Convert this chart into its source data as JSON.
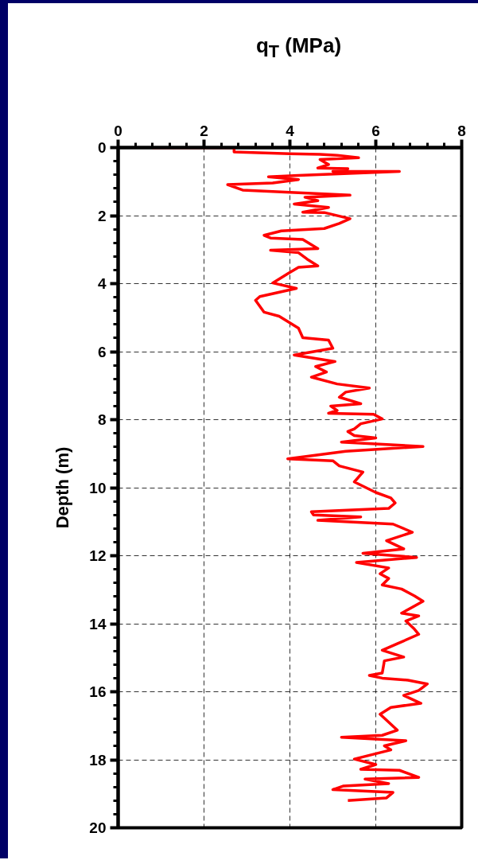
{
  "chart_data": {
    "type": "line",
    "xlabel": "q$_{T}$ (MPa)",
    "ylabel": "Depth (m)",
    "xlim": [
      0,
      8
    ],
    "ylim": [
      20,
      0
    ],
    "xticks": [
      0,
      2,
      4,
      6,
      8
    ],
    "yticks": [
      0,
      2,
      4,
      6,
      8,
      10,
      12,
      14,
      16,
      18,
      20
    ],
    "grid": true,
    "line_style": "solid",
    "marker": "none",
    "series": [
      {
        "color": "#ff0000",
        "x": [
          0.8,
          2.7,
          2.7,
          4.0,
          4.7,
          5.1,
          5.6,
          4.7,
          4.9,
          4.65,
          5.35,
          5.0,
          6.55,
          4.2,
          3.5,
          4.2,
          3.6,
          2.55,
          2.9,
          5.4,
          4.35,
          4.65,
          4.1,
          4.9,
          4.3,
          4.8,
          5.4,
          5.15,
          4.8,
          3.8,
          3.4,
          3.55,
          4.3,
          4.65,
          3.55,
          4.2,
          4.4,
          4.65,
          4.2,
          3.95,
          3.6,
          4.15,
          3.3,
          3.2,
          3.4,
          3.75,
          4.2,
          4.3,
          4.9,
          5.0,
          4.1,
          5.05,
          4.6,
          4.85,
          4.5,
          5.1,
          5.85,
          5.3,
          5.15,
          5.65,
          4.95,
          5.1,
          4.9,
          5.95,
          6.15,
          5.65,
          5.5,
          5.35,
          5.5,
          6.0,
          5.2,
          7.1,
          5.3,
          3.95,
          5.0,
          5.15,
          5.7,
          5.5,
          6.0,
          6.35,
          6.45,
          6.3,
          4.5,
          4.55,
          5.65,
          4.65,
          6.4,
          6.85,
          6.25,
          6.65,
          5.7,
          6.95,
          5.55,
          6.3,
          6.1,
          6.3,
          6.15,
          6.6,
          6.9,
          7.1,
          6.6,
          7.0,
          6.7,
          6.9,
          7.0,
          6.5,
          6.15,
          6.65,
          6.2,
          6.15,
          5.85,
          6.15,
          6.75,
          7.2,
          7.0,
          6.65,
          7.05,
          6.35,
          6.1,
          6.5,
          6.15,
          5.2,
          6.7,
          6.2,
          6.35,
          5.5,
          6.0,
          5.65,
          6.55,
          7.0,
          5.75,
          6.3,
          5.25,
          5.0,
          6.4,
          6.25,
          5.35
        ],
        "values": [
          0.0,
          0.0,
          0.13,
          0.18,
          0.2,
          0.23,
          0.3,
          0.35,
          0.5,
          0.6,
          0.62,
          0.7,
          0.7,
          0.82,
          0.86,
          0.94,
          1.04,
          1.09,
          1.25,
          1.4,
          1.46,
          1.56,
          1.66,
          1.76,
          1.9,
          1.91,
          2.09,
          2.23,
          2.38,
          2.45,
          2.58,
          2.66,
          2.7,
          2.97,
          3.02,
          3.09,
          3.28,
          3.48,
          3.52,
          3.71,
          3.98,
          4.14,
          4.38,
          4.49,
          4.84,
          4.96,
          5.31,
          5.59,
          5.66,
          5.9,
          6.1,
          6.29,
          6.44,
          6.6,
          6.75,
          6.95,
          7.07,
          7.19,
          7.34,
          7.53,
          7.6,
          7.73,
          7.81,
          7.84,
          7.98,
          8.12,
          8.27,
          8.35,
          8.47,
          8.54,
          8.66,
          8.79,
          8.93,
          9.15,
          9.21,
          9.36,
          9.54,
          9.83,
          10.14,
          10.3,
          10.45,
          10.61,
          10.71,
          10.8,
          10.86,
          10.96,
          11.07,
          11.31,
          11.56,
          11.8,
          11.93,
          12.05,
          12.2,
          12.36,
          12.53,
          12.67,
          12.86,
          12.98,
          13.18,
          13.34,
          13.69,
          13.77,
          13.92,
          14.16,
          14.31,
          14.59,
          14.78,
          14.98,
          15.09,
          15.45,
          15.52,
          15.6,
          15.66,
          15.77,
          15.96,
          16.11,
          16.34,
          16.46,
          16.66,
          17.13,
          17.28,
          17.34,
          17.44,
          17.59,
          17.71,
          17.98,
          18.14,
          18.28,
          18.31,
          18.52,
          18.57,
          18.7,
          18.77,
          18.88,
          18.96,
          19.12,
          19.2
        ]
      }
    ]
  }
}
